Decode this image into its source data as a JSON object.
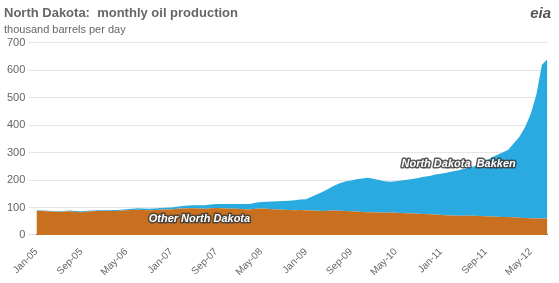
{
  "chart_data": {
    "type": "area",
    "title": "North Dakota:  monthly oil production",
    "ylabel": "thousand barrels per day",
    "stacked": true,
    "grid": true,
    "ylim": [
      0,
      700
    ],
    "yticks": [
      0,
      100,
      200,
      300,
      400,
      500,
      600,
      700
    ],
    "categories": [
      "Jan-05",
      null,
      null,
      null,
      null,
      null,
      null,
      null,
      "Sep-05",
      null,
      null,
      null,
      null,
      null,
      null,
      null,
      "May-06",
      null,
      null,
      null,
      null,
      null,
      null,
      null,
      "Jan-07",
      null,
      null,
      null,
      null,
      null,
      null,
      null,
      "Sep-07",
      null,
      null,
      null,
      null,
      null,
      null,
      null,
      "May-08",
      null,
      null,
      null,
      null,
      null,
      null,
      null,
      "Jan-09",
      null,
      null,
      null,
      null,
      null,
      null,
      null,
      "Sep-09",
      null,
      null,
      null,
      null,
      null,
      null,
      null,
      "May-10",
      null,
      null,
      null,
      null,
      null,
      null,
      null,
      "Jan-11",
      null,
      null,
      null,
      null,
      null,
      null,
      null,
      "Sep-11",
      null,
      null,
      null,
      null,
      null,
      null,
      null,
      "May-12",
      null,
      null,
      null
    ],
    "series": [
      {
        "color": "#C87020",
        "values": [
          88,
          87,
          86,
          85,
          84,
          85,
          86,
          84,
          83,
          85,
          86,
          87,
          87,
          88,
          87,
          88,
          90,
          91,
          92,
          91,
          90,
          91,
          92,
          93,
          93,
          95,
          96,
          97,
          97,
          96,
          95,
          97,
          98,
          97,
          96,
          95,
          95,
          94,
          93,
          95,
          96,
          95,
          94,
          93,
          92,
          91,
          90,
          91,
          90,
          89,
          88,
          87,
          88,
          89,
          88,
          87,
          86,
          85,
          84,
          83,
          83,
          82,
          81,
          82,
          81,
          80,
          79,
          78,
          77,
          76,
          75,
          74,
          73,
          72,
          71,
          70,
          70,
          70,
          70,
          69,
          68,
          67,
          66,
          65,
          65,
          64,
          63,
          62,
          61,
          60,
          60,
          60
        ]
      },
      {
        "color": "#29ABE2",
        "values": [
          2,
          2,
          2,
          2,
          2,
          2,
          3,
          3,
          3,
          3,
          3,
          3,
          3,
          3,
          4,
          4,
          4,
          4,
          5,
          5,
          5,
          5,
          6,
          6,
          7,
          8,
          9,
          10,
          11,
          12,
          13,
          14,
          15,
          16,
          17,
          18,
          18,
          19,
          20,
          22,
          24,
          26,
          28,
          30,
          32,
          34,
          36,
          38,
          40,
          50,
          60,
          70,
          80,
          90,
          100,
          108,
          112,
          118,
          122,
          125,
          122,
          118,
          115,
          112,
          115,
          118,
          122,
          126,
          130,
          136,
          140,
          146,
          150,
          155,
          160,
          165,
          170,
          175,
          180,
          190,
          200,
          215,
          225,
          235,
          245,
          270,
          295,
          330,
          380,
          450,
          560,
          580
        ]
      }
    ],
    "annotations": [
      {
        "text": "Other North Dakota",
        "x": 20,
        "y": 38
      },
      {
        "text": "North Dakota  Bakken",
        "x": 65,
        "y": 240
      },
      {
        "text": "eia"
      }
    ]
  }
}
